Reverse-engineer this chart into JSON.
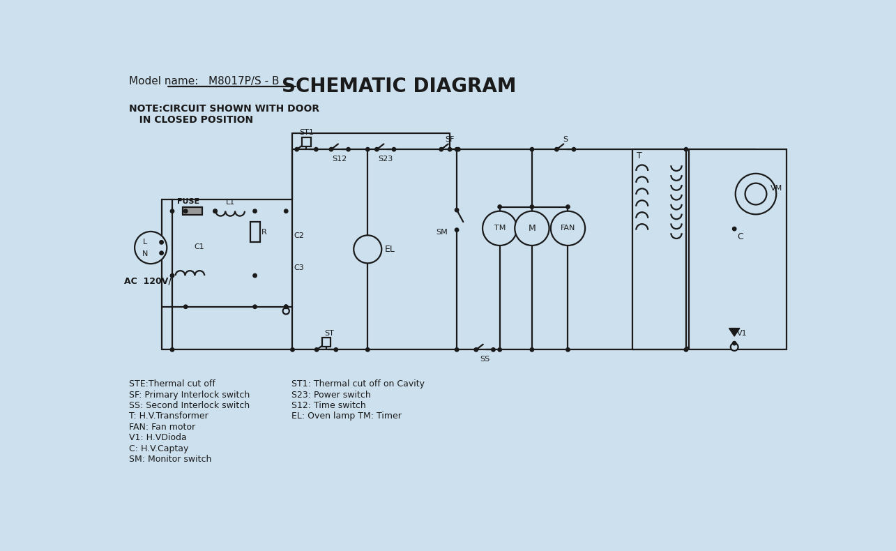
{
  "bg_color": "#cde0ee",
  "line_color": "#1a1a1a",
  "title": "SCHEMATIC DIAGRAM",
  "model_label": "Model name:   M8017P/S - B",
  "note_line1": "NOTE:CIRCUIT SHOWN WITH DOOR",
  "note_line2": "   IN CLOSED POSITION",
  "legend_left": [
    "STE:Thermal cut off",
    "SF: Primary Interlock switch",
    "SS: Second Interlock switch",
    "T: H.V.Transformer",
    "FAN: Fan motor",
    "V1: H.VDioda",
    "C: H.V.Captay",
    "SM: Monitor switch"
  ],
  "legend_right": [
    "ST1: Thermal cut off on Cavity",
    "S23: Power switch",
    "S12: Time switch",
    "EL: Oven lamp TM: Timer"
  ]
}
